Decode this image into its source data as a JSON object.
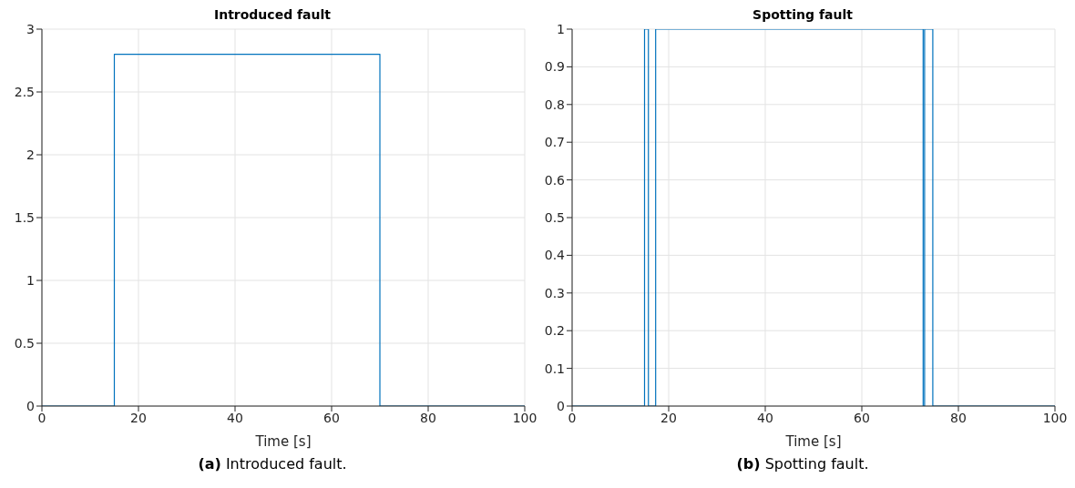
{
  "chart_data": [
    {
      "type": "line",
      "title": "Introduced fault",
      "xlabel": "Time [s]",
      "x": [
        0,
        15,
        15,
        70,
        70,
        100
      ],
      "series": [
        {
          "color": "#0072bd",
          "values": [
            0,
            0,
            2.8,
            2.8,
            0,
            0
          ]
        }
      ],
      "xlim": [
        0,
        100
      ],
      "ylim": [
        0,
        3
      ],
      "xticks": [
        0,
        20,
        40,
        60,
        80,
        100
      ],
      "yticks": [
        0,
        0.5,
        1,
        1.5,
        2,
        2.5,
        3
      ],
      "grid": true,
      "annotations": [
        "(a) Introduced fault."
      ]
    },
    {
      "type": "line",
      "title": "Spotting fault",
      "xlabel": "Time [s]",
      "x": [
        0,
        15,
        15,
        15.8,
        15.8,
        17.3,
        17.3,
        72.7,
        72.7,
        73,
        73,
        74.7,
        74.7,
        100
      ],
      "series": [
        {
          "color": "#0072bd",
          "values": [
            0,
            0,
            1,
            1,
            0,
            0,
            1,
            1,
            0,
            0,
            1,
            1,
            0,
            0
          ]
        }
      ],
      "xlim": [
        0,
        100
      ],
      "ylim": [
        0,
        1
      ],
      "xticks": [
        0,
        20,
        40,
        60,
        80,
        100
      ],
      "yticks": [
        0,
        0.1,
        0.2,
        0.3,
        0.4,
        0.5,
        0.6,
        0.7,
        0.8,
        0.9,
        1
      ],
      "grid": true,
      "annotations": [
        "(b) Spotting fault."
      ]
    }
  ]
}
